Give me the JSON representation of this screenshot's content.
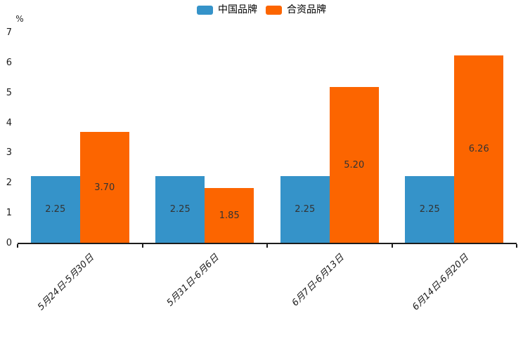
{
  "chart_data": {
    "type": "bar",
    "title": "",
    "xlabel": "",
    "ylabel": "%",
    "ylim": [
      0,
      7
    ],
    "yticks": [
      0,
      1,
      2,
      3,
      4,
      5,
      6,
      7
    ],
    "grid": false,
    "legend_position": "top",
    "categories": [
      "5月24日-5月30日",
      "5月31日-6月6日",
      "6月7日-6月13日",
      "6月14日-6月20日"
    ],
    "series": [
      {
        "name": "中国品牌",
        "color": "#3593c9",
        "values": [
          2.25,
          2.25,
          2.25,
          2.25
        ],
        "labels": [
          "2.25",
          "2.25",
          "2.25",
          "2.25"
        ]
      },
      {
        "name": "合资品牌",
        "color": "#fc6500",
        "values": [
          3.7,
          1.85,
          5.2,
          6.26
        ],
        "labels": [
          "3.70",
          "1.85",
          "5.20",
          "6.26"
        ]
      }
    ]
  }
}
